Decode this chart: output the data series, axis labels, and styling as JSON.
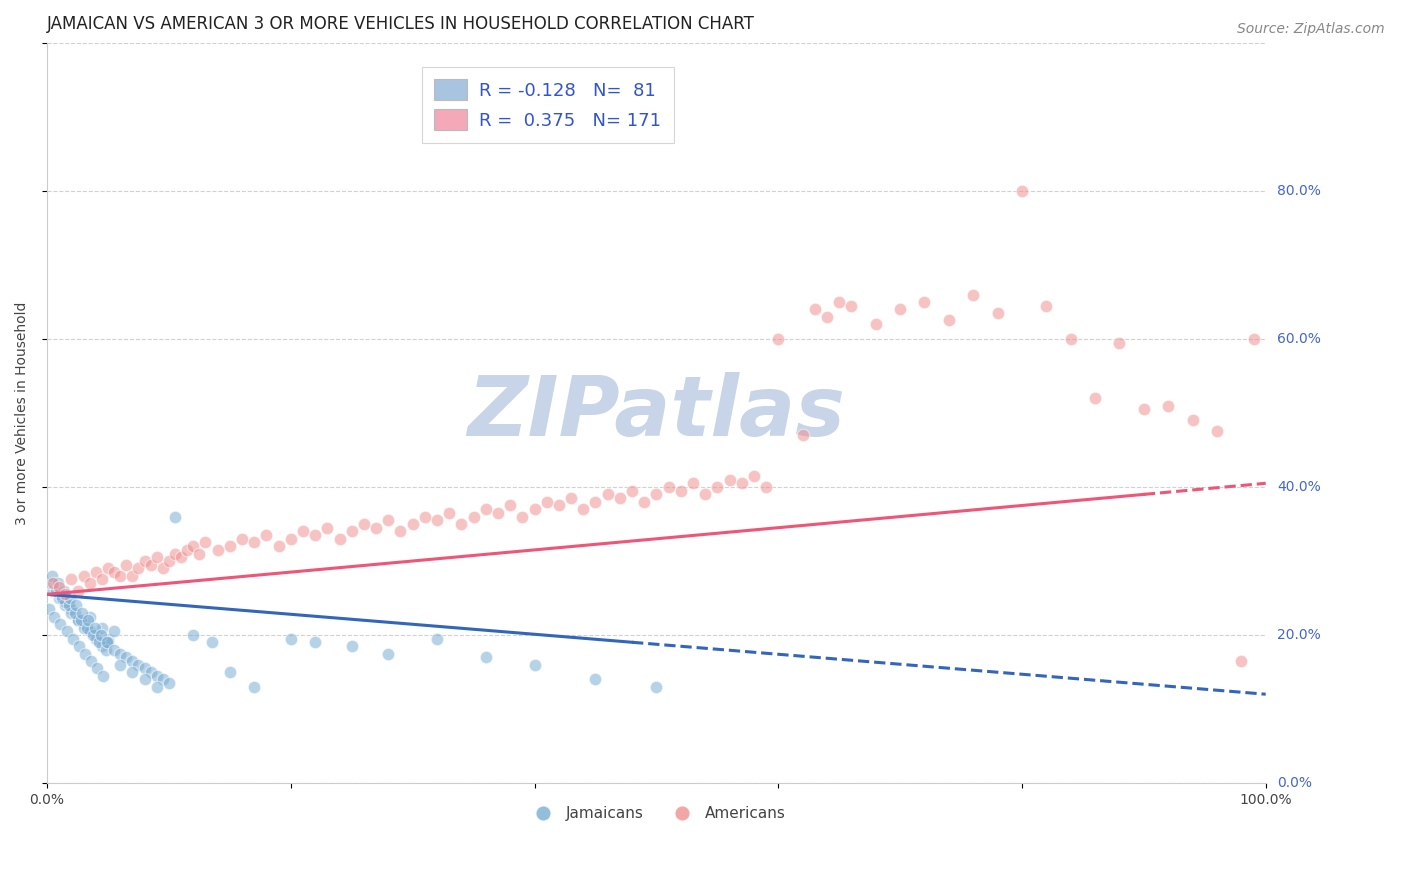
{
  "title": "JAMAICAN VS AMERICAN 3 OR MORE VEHICLES IN HOUSEHOLD CORRELATION CHART",
  "source": "Source: ZipAtlas.com",
  "ylabel": "3 or more Vehicles in Household",
  "watermark": "ZIPatlas",
  "jamaican_color": "#7aadd4",
  "american_color": "#f09090",
  "jamaican_line_color": "#3366bb",
  "american_line_color": "#ee5577",
  "jamaican_scatter_x": [
    1.0,
    1.5,
    2.0,
    2.5,
    3.0,
    3.5,
    4.0,
    4.5,
    5.0,
    5.5,
    0.5,
    1.0,
    1.5,
    2.0,
    2.5,
    3.0,
    3.5,
    4.0,
    4.5,
    5.0,
    0.3,
    0.7,
    1.2,
    1.8,
    2.3,
    2.8,
    3.3,
    3.8,
    4.3,
    4.8,
    0.4,
    0.9,
    1.4,
    1.9,
    2.4,
    2.9,
    3.4,
    3.9,
    4.4,
    4.9,
    0.2,
    0.6,
    1.1,
    1.6,
    2.1,
    2.6,
    3.1,
    3.6,
    4.1,
    4.6,
    5.5,
    6.0,
    6.5,
    7.0,
    7.5,
    8.0,
    8.5,
    9.0,
    9.5,
    10.0,
    6.0,
    7.0,
    8.0,
    9.0,
    10.5,
    12.0,
    13.5,
    15.0,
    17.0,
    20.0,
    22.0,
    25.0,
    28.0,
    32.0,
    36.0,
    40.0,
    45.0,
    50.0
  ],
  "jamaican_scatter_y": [
    25.0,
    24.0,
    23.5,
    22.0,
    21.5,
    22.5,
    20.0,
    21.0,
    19.5,
    20.5,
    26.0,
    25.5,
    24.5,
    23.0,
    22.0,
    21.0,
    20.5,
    19.5,
    18.5,
    19.0,
    27.0,
    26.0,
    25.0,
    24.0,
    23.0,
    22.0,
    21.0,
    20.0,
    19.0,
    18.0,
    28.0,
    27.0,
    26.0,
    25.0,
    24.0,
    23.0,
    22.0,
    21.0,
    20.0,
    19.0,
    23.5,
    22.5,
    21.5,
    20.5,
    19.5,
    18.5,
    17.5,
    16.5,
    15.5,
    14.5,
    18.0,
    17.5,
    17.0,
    16.5,
    16.0,
    15.5,
    15.0,
    14.5,
    14.0,
    13.5,
    16.0,
    15.0,
    14.0,
    13.0,
    36.0,
    20.0,
    19.0,
    15.0,
    13.0,
    19.5,
    19.0,
    18.5,
    17.5,
    19.5,
    17.0,
    16.0,
    14.0,
    13.0
  ],
  "american_scatter_x": [
    0.5,
    1.0,
    1.5,
    2.0,
    2.5,
    3.0,
    3.5,
    4.0,
    4.5,
    5.0,
    5.5,
    6.0,
    6.5,
    7.0,
    7.5,
    8.0,
    8.5,
    9.0,
    9.5,
    10.0,
    10.5,
    11.0,
    11.5,
    12.0,
    12.5,
    13.0,
    14.0,
    15.0,
    16.0,
    17.0,
    18.0,
    19.0,
    20.0,
    21.0,
    22.0,
    23.0,
    24.0,
    25.0,
    26.0,
    27.0,
    28.0,
    29.0,
    30.0,
    31.0,
    32.0,
    33.0,
    34.0,
    35.0,
    36.0,
    37.0,
    38.0,
    39.0,
    40.0,
    41.0,
    42.0,
    43.0,
    44.0,
    45.0,
    46.0,
    47.0,
    48.0,
    49.0,
    50.0,
    51.0,
    52.0,
    53.0,
    54.0,
    55.0,
    56.0,
    57.0,
    58.0,
    59.0,
    60.0,
    62.0,
    63.0,
    64.0,
    65.0,
    66.0,
    68.0,
    70.0,
    72.0,
    74.0,
    76.0,
    78.0,
    80.0,
    82.0,
    84.0,
    86.0,
    88.0,
    90.0,
    92.0,
    94.0,
    96.0,
    98.0,
    99.0
  ],
  "american_scatter_y": [
    27.0,
    26.5,
    25.5,
    27.5,
    26.0,
    28.0,
    27.0,
    28.5,
    27.5,
    29.0,
    28.5,
    28.0,
    29.5,
    28.0,
    29.0,
    30.0,
    29.5,
    30.5,
    29.0,
    30.0,
    31.0,
    30.5,
    31.5,
    32.0,
    31.0,
    32.5,
    31.5,
    32.0,
    33.0,
    32.5,
    33.5,
    32.0,
    33.0,
    34.0,
    33.5,
    34.5,
    33.0,
    34.0,
    35.0,
    34.5,
    35.5,
    34.0,
    35.0,
    36.0,
    35.5,
    36.5,
    35.0,
    36.0,
    37.0,
    36.5,
    37.5,
    36.0,
    37.0,
    38.0,
    37.5,
    38.5,
    37.0,
    38.0,
    39.0,
    38.5,
    39.5,
    38.0,
    39.0,
    40.0,
    39.5,
    40.5,
    39.0,
    40.0,
    41.0,
    40.5,
    41.5,
    40.0,
    60.0,
    47.0,
    64.0,
    63.0,
    65.0,
    64.5,
    62.0,
    64.0,
    65.0,
    62.5,
    66.0,
    63.5,
    80.0,
    64.5,
    60.0,
    52.0,
    59.5,
    50.5,
    51.0,
    49.0,
    47.5,
    16.5,
    60.0
  ],
  "jamaican_trend_x0": 0.0,
  "jamaican_trend_y0": 25.5,
  "jamaican_trend_x1": 100.0,
  "jamaican_trend_y1": 12.0,
  "jamaican_solid_end": 48.0,
  "american_trend_x0": 0.0,
  "american_trend_y0": 25.5,
  "american_trend_x1": 100.0,
  "american_trend_y1": 40.5,
  "american_solid_end": 90.0,
  "xlim": [
    0,
    100
  ],
  "ylim_data_min": 0,
  "ylim_data_max": 100,
  "background_color": "#ffffff",
  "grid_color": "#cccccc",
  "title_fontsize": 12,
  "axis_label_fontsize": 10,
  "tick_fontsize": 10,
  "source_fontsize": 10,
  "watermark_color": "#c8d4e8",
  "watermark_fontsize": 60,
  "ytick_right_color": "#4466cc"
}
